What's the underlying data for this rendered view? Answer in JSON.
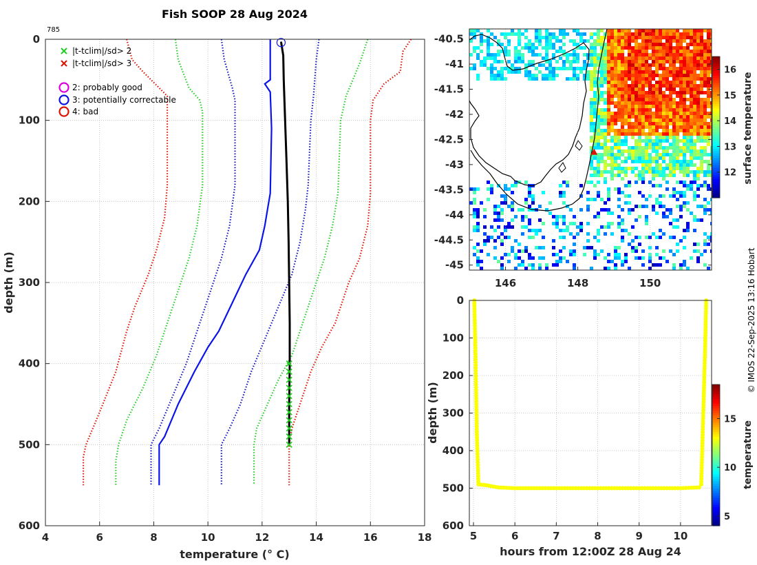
{
  "title": "Fish SOOP 28 Aug 2024",
  "profile_id": "785",
  "credit": "© IMOS 22-Sep-2025 13:16 Hobart",
  "colors": {
    "green": "#22cc22",
    "red": "#dd1100",
    "blue_dotted": "#1111bb",
    "blue": "#0a14e6",
    "black": "#000000",
    "magenta": "#dd00dd",
    "trace": "#e1ee1b",
    "grid": "#b8b8b8",
    "land": "#000000"
  },
  "legend": [
    {
      "marker": "x",
      "color": "#22cc22",
      "label": "|t-tclim|/sd> 2"
    },
    {
      "marker": "x",
      "color": "#dd1100",
      "label": "|t-tclim|/sd> 3"
    },
    {
      "marker": "o",
      "color": "#dd00dd",
      "label": "2: probably good"
    },
    {
      "marker": "o",
      "color": "#0a14e6",
      "label": "3: potentially correctable"
    },
    {
      "marker": "o",
      "color": "#dd1100",
      "label": "4: bad"
    }
  ],
  "chart_data": [
    {
      "type": "line",
      "name": "temperature-profile",
      "xlabel": "temperature (° C)",
      "ylabel": "depth (m)",
      "xlim": [
        4,
        18
      ],
      "ylim": [
        0,
        600
      ],
      "xticks": [
        4,
        6,
        8,
        10,
        12,
        14,
        16,
        18
      ],
      "yticks": [
        0,
        100,
        200,
        300,
        400,
        500,
        600
      ],
      "y_inverted": true,
      "series": [
        {
          "name": "clim -3sd",
          "style": "dotted",
          "color": "#dd1100",
          "points": [
            [
              7.0,
              0
            ],
            [
              7.2,
              25
            ],
            [
              7.6,
              40
            ],
            [
              8.2,
              60
            ],
            [
              8.5,
              70
            ],
            [
              8.5,
              100
            ],
            [
              8.5,
              180
            ],
            [
              8.4,
              220
            ],
            [
              8.1,
              260
            ],
            [
              7.8,
              290
            ],
            [
              7.3,
              330
            ],
            [
              7.0,
              360
            ],
            [
              6.6,
              410
            ],
            [
              6.0,
              460
            ],
            [
              5.5,
              500
            ],
            [
              5.4,
              515
            ],
            [
              5.4,
              550
            ]
          ]
        },
        {
          "name": "clim -2sd",
          "style": "dotted",
          "color": "#22cc22",
          "points": [
            [
              8.8,
              0
            ],
            [
              8.9,
              25
            ],
            [
              9.3,
              60
            ],
            [
              9.7,
              75
            ],
            [
              9.8,
              90
            ],
            [
              9.8,
              180
            ],
            [
              9.6,
              230
            ],
            [
              9.3,
              270
            ],
            [
              8.9,
              310
            ],
            [
              8.5,
              350
            ],
            [
              8.1,
              390
            ],
            [
              7.6,
              430
            ],
            [
              7.0,
              470
            ],
            [
              6.7,
              500
            ],
            [
              6.6,
              520
            ],
            [
              6.6,
              550
            ]
          ]
        },
        {
          "name": "clim -1sd",
          "style": "dotted",
          "color": "#1111bb",
          "points": [
            [
              10.5,
              0
            ],
            [
              10.6,
              25
            ],
            [
              10.9,
              60
            ],
            [
              11.0,
              75
            ],
            [
              11.0,
              180
            ],
            [
              10.8,
              230
            ],
            [
              10.5,
              270
            ],
            [
              10.1,
              310
            ],
            [
              9.6,
              360
            ],
            [
              9.2,
              400
            ],
            [
              8.7,
              440
            ],
            [
              8.2,
              480
            ],
            [
              7.9,
              500
            ],
            [
              7.9,
              520
            ],
            [
              7.9,
              550
            ]
          ]
        },
        {
          "name": "climatology mean",
          "style": "solid",
          "color": "#0a14e6",
          "points": [
            [
              12.3,
              0
            ],
            [
              12.3,
              50
            ],
            [
              12.1,
              55
            ],
            [
              12.3,
              65
            ],
            [
              12.35,
              110
            ],
            [
              12.3,
              190
            ],
            [
              12.2,
              210
            ],
            [
              12.1,
              230
            ],
            [
              11.9,
              260
            ],
            [
              11.4,
              290
            ],
            [
              10.9,
              325
            ],
            [
              10.4,
              360
            ],
            [
              10.0,
              380
            ],
            [
              9.5,
              410
            ],
            [
              8.9,
              450
            ],
            [
              8.4,
              490
            ],
            [
              8.2,
              500
            ],
            [
              8.2,
              550
            ]
          ]
        },
        {
          "name": "clim +1sd",
          "style": "dotted",
          "color": "#1111bb",
          "points": [
            [
              14.1,
              0
            ],
            [
              14.0,
              25
            ],
            [
              13.9,
              70
            ],
            [
              13.8,
              100
            ],
            [
              13.7,
              180
            ],
            [
              13.6,
              210
            ],
            [
              13.4,
              250
            ],
            [
              13.1,
              290
            ],
            [
              12.6,
              330
            ],
            [
              12.1,
              370
            ],
            [
              11.6,
              410
            ],
            [
              11.2,
              450
            ],
            [
              10.8,
              480
            ],
            [
              10.5,
              500
            ],
            [
              10.5,
              520
            ],
            [
              10.5,
              550
            ]
          ]
        },
        {
          "name": "clim +2sd",
          "style": "dotted",
          "color": "#22cc22",
          "points": [
            [
              15.9,
              0
            ],
            [
              15.6,
              30
            ],
            [
              15.1,
              70
            ],
            [
              14.9,
              100
            ],
            [
              14.8,
              190
            ],
            [
              14.6,
              230
            ],
            [
              14.3,
              270
            ],
            [
              14.0,
              300
            ],
            [
              13.6,
              340
            ],
            [
              13.1,
              390
            ],
            [
              12.6,
              420
            ],
            [
              12.2,
              450
            ],
            [
              11.8,
              480
            ],
            [
              11.7,
              500
            ],
            [
              11.7,
              520
            ],
            [
              11.7,
              550
            ]
          ]
        },
        {
          "name": "clim +3sd",
          "style": "dotted",
          "color": "#dd1100",
          "points": [
            [
              17.5,
              0
            ],
            [
              17.2,
              15
            ],
            [
              17.1,
              40
            ],
            [
              16.5,
              55
            ],
            [
              16.1,
              75
            ],
            [
              16.0,
              100
            ],
            [
              16.0,
              190
            ],
            [
              15.9,
              230
            ],
            [
              15.6,
              270
            ],
            [
              15.2,
              300
            ],
            [
              14.7,
              350
            ],
            [
              14.2,
              380
            ],
            [
              13.8,
              410
            ],
            [
              13.4,
              450
            ],
            [
              13.1,
              480
            ],
            [
              13.0,
              500
            ],
            [
              13.0,
              520
            ],
            [
              13.0,
              550
            ]
          ]
        },
        {
          "name": "observed temperature",
          "style": "solid",
          "color": "#000000",
          "points": [
            [
              12.7,
              3
            ],
            [
              12.78,
              20
            ],
            [
              12.8,
              50
            ],
            [
              12.85,
              100
            ],
            [
              12.9,
              150
            ],
            [
              12.95,
              200
            ],
            [
              12.98,
              250
            ],
            [
              13.0,
              300
            ],
            [
              13.02,
              350
            ],
            [
              13.02,
              400
            ],
            [
              13.0,
              450
            ],
            [
              13.0,
              500
            ]
          ]
        }
      ],
      "flagged_2sd": {
        "temperature": 13.0,
        "depths": [
          400,
          410,
          420,
          430,
          440,
          450,
          460,
          470,
          480,
          490,
          500
        ]
      },
      "flag_circle": {
        "temperature": 12.7,
        "depth": 4,
        "flag": 3
      }
    },
    {
      "type": "heatmap",
      "name": "surface-temperature-map",
      "colorbar_label": "surface temperature",
      "xlim": [
        145,
        151.7
      ],
      "ylim": [
        -45.1,
        -40.3
      ],
      "xticks": [
        146,
        148,
        150
      ],
      "yticks": [
        -40.5,
        -41,
        -41.5,
        -42,
        -42.5,
        -43,
        -43.5,
        -44,
        -44.5,
        -45
      ],
      "clim": [
        11,
        16.5
      ],
      "cticks": [
        12,
        13,
        14,
        15,
        16
      ],
      "ship_position": {
        "lon": 148.45,
        "lat": -42.75
      }
    },
    {
      "type": "scatter",
      "name": "depth-time-section",
      "xlabel": "hours from 12:00Z 28 Aug 24",
      "ylabel": "depth (m)",
      "xlim": [
        4.9,
        10.75
      ],
      "ylim": [
        0,
        600
      ],
      "y_inverted": true,
      "xticks": [
        5,
        6,
        7,
        8,
        9,
        10
      ],
      "yticks": [
        0,
        100,
        200,
        300,
        400,
        500,
        600
      ],
      "colorbar_label": "temperature",
      "clim": [
        4,
        18.5
      ],
      "cticks": [
        5,
        10,
        15
      ],
      "point_temperature": 13,
      "trace": [
        [
          5.02,
          0
        ],
        [
          5.05,
          150
        ],
        [
          5.08,
          350
        ],
        [
          5.12,
          490
        ],
        [
          5.3,
          492
        ],
        [
          5.6,
          498
        ],
        [
          6.0,
          500
        ],
        [
          8.0,
          500
        ],
        [
          10.0,
          500
        ],
        [
          10.45,
          498
        ],
        [
          10.5,
          490
        ],
        [
          10.55,
          300
        ],
        [
          10.6,
          100
        ],
        [
          10.62,
          0
        ]
      ]
    }
  ]
}
